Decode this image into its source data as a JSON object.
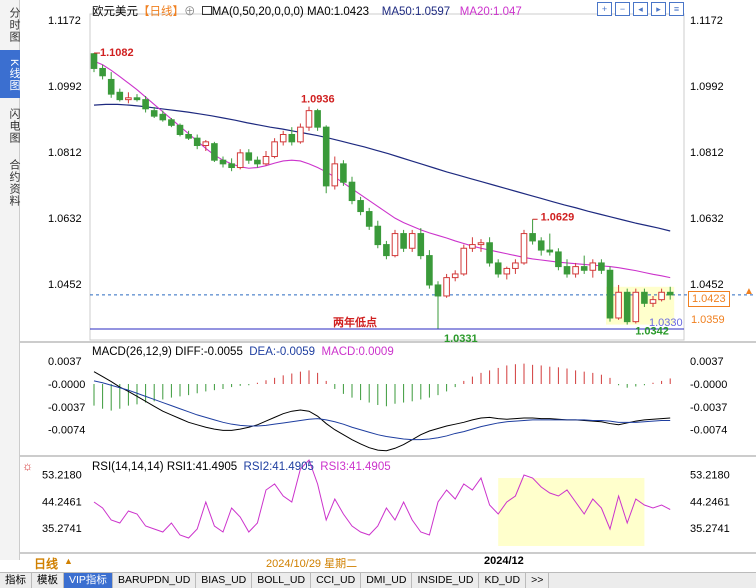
{
  "sidebar": {
    "tabs": [
      {
        "label": "分时图",
        "active": false
      },
      {
        "label": "K线图",
        "active": true
      },
      {
        "label": "闪电图",
        "active": false
      },
      {
        "label": "合约资料",
        "active": false
      }
    ]
  },
  "header": {
    "symbol": "欧元美元",
    "period": "【日线】",
    "plus": "⊕",
    "ma_params": "MA(0,50,20,0,0,0)",
    "ma0": "MA0:1.0423",
    "ma50": "MA50:1.0597",
    "ma20": "MA20:1.047"
  },
  "toolbar": {
    "icons": [
      "zoom-in-icon",
      "zoom-out-icon",
      "left-icon",
      "right-icon",
      "config-icon"
    ]
  },
  "colors": {
    "up": "#d23a3a",
    "down": "#3a9a3a",
    "ma50": "#1e2a80",
    "ma20": "#cc33cc",
    "dif": "#000000",
    "dea": "#1e3ea0",
    "rsi": "#cc33cc",
    "hline": "#2a2ac0",
    "label_red": "#d02020",
    "label_green": "#2a9a2a",
    "orange": "#f08020",
    "highlight": "#ffffcc"
  },
  "annotations": {
    "high1": "1.1082",
    "high2": "1.0936",
    "high3": "1.0629",
    "low_label": "两年低点",
    "low1": "1.0331",
    "low2": "1.0342",
    "hline_label": "1.0330",
    "price_tag": "1.0423",
    "price_tag2": "1.0359"
  },
  "main_axis": {
    "ticks": [
      "1.1172",
      "1.0992",
      "1.0812",
      "1.0632",
      "1.0452"
    ]
  },
  "macd_header": {
    "title": "MACD(26,12,9)",
    "dif": "DIFF:-0.0055",
    "dea": "DEA:-0.0059",
    "macd": "MACD:0.0009"
  },
  "macd_axis": {
    "ticks": [
      "0.0037",
      "-0.0000",
      "-0.0037",
      "-0.0074"
    ]
  },
  "rsi_header": {
    "title": "RSI(14,14,14)",
    "rsi1": "RSI1:41.4905",
    "rsi2": "RSI2:41.4905",
    "rsi3": "RSI3:41.4905"
  },
  "rsi_axis": {
    "ticks": [
      "53.2180",
      "44.2461",
      "35.2741"
    ]
  },
  "date_bar": {
    "period": "日线",
    "arrow": "▲",
    "date1": "2024/10/29 星期二",
    "date2": "2024/12"
  },
  "bottom_tabs": [
    "指标",
    "模板",
    "VIP指标",
    "BARUPDN_UD",
    "BIAS_UD",
    "BOLL_UD",
    "CCI_UD",
    "DMI_UD",
    "INSIDE_UD",
    "KD_UD",
    ">>"
  ],
  "chart_data": {
    "type": "candlestick",
    "title": "欧元美元 日线",
    "ylim": [
      1.03,
      1.1172
    ],
    "candles": [
      [
        1.108,
        1.1082,
        1.103,
        1.104
      ],
      [
        1.104,
        1.105,
        1.101,
        1.102
      ],
      [
        1.101,
        1.103,
        1.096,
        1.097
      ],
      [
        1.0975,
        1.0985,
        1.095,
        1.0955
      ],
      [
        1.0955,
        1.0975,
        1.0945,
        1.096
      ],
      [
        1.096,
        1.097,
        1.095,
        1.0955
      ],
      [
        1.0955,
        1.0965,
        1.092,
        1.093
      ],
      [
        1.0925,
        1.0935,
        1.0905,
        1.091
      ],
      [
        1.0915,
        1.0925,
        1.0895,
        1.09
      ],
      [
        1.09,
        1.0905,
        1.088,
        1.0885
      ],
      [
        1.0885,
        1.089,
        1.0855,
        1.086
      ],
      [
        1.086,
        1.087,
        1.0845,
        1.085
      ],
      [
        1.085,
        1.086,
        1.082,
        1.083
      ],
      [
        1.083,
        1.0845,
        1.0815,
        1.084
      ],
      [
        1.0835,
        1.084,
        1.0785,
        1.079
      ],
      [
        1.079,
        1.08,
        1.077,
        1.078
      ],
      [
        1.078,
        1.0795,
        1.076,
        1.077
      ],
      [
        1.077,
        1.082,
        1.0765,
        1.081
      ],
      [
        1.081,
        1.082,
        1.078,
        1.079
      ],
      [
        1.079,
        1.08,
        1.077,
        1.078
      ],
      [
        1.078,
        1.0815,
        1.0775,
        1.08
      ],
      [
        1.08,
        1.085,
        1.0795,
        1.084
      ],
      [
        1.084,
        1.087,
        1.083,
        1.086
      ],
      [
        1.086,
        1.088,
        1.083,
        1.084
      ],
      [
        1.084,
        1.089,
        1.0835,
        1.088
      ],
      [
        1.088,
        1.0936,
        1.087,
        1.0925
      ],
      [
        1.0925,
        1.093,
        1.087,
        1.088
      ],
      [
        1.088,
        1.0885,
        1.07,
        1.072
      ],
      [
        1.072,
        1.08,
        1.071,
        1.078
      ],
      [
        1.078,
        1.079,
        1.072,
        1.073
      ],
      [
        1.073,
        1.0745,
        1.067,
        1.068
      ],
      [
        1.068,
        1.069,
        1.064,
        1.065
      ],
      [
        1.065,
        1.066,
        1.06,
        1.061
      ],
      [
        1.061,
        1.0625,
        1.055,
        1.056
      ],
      [
        1.056,
        1.057,
        1.052,
        1.053
      ],
      [
        1.053,
        1.06,
        1.0525,
        1.059
      ],
      [
        1.059,
        1.06,
        1.054,
        1.055
      ],
      [
        1.055,
        1.06,
        1.054,
        1.059
      ],
      [
        1.059,
        1.0605,
        1.052,
        1.053
      ],
      [
        1.053,
        1.0545,
        1.044,
        1.045
      ],
      [
        1.045,
        1.046,
        1.0331,
        1.042
      ],
      [
        1.042,
        1.048,
        1.0415,
        1.047
      ],
      [
        1.047,
        1.049,
        1.046,
        1.048
      ],
      [
        1.048,
        1.056,
        1.0475,
        1.055
      ],
      [
        1.055,
        1.058,
        1.054,
        1.056
      ],
      [
        1.056,
        1.0575,
        1.054,
        1.0565
      ],
      [
        1.0565,
        1.058,
        1.05,
        1.051
      ],
      [
        1.051,
        1.052,
        1.047,
        1.048
      ],
      [
        1.048,
        1.05,
        1.0465,
        1.0495
      ],
      [
        1.0495,
        1.052,
        1.048,
        1.051
      ],
      [
        1.051,
        1.06,
        1.0505,
        1.059
      ],
      [
        1.059,
        1.0629,
        1.056,
        1.057
      ],
      [
        1.057,
        1.058,
        1.053,
        1.0545
      ],
      [
        1.0545,
        1.059,
        1.053,
        1.054
      ],
      [
        1.054,
        1.055,
        1.049,
        1.05
      ],
      [
        1.05,
        1.052,
        1.047,
        1.048
      ],
      [
        1.048,
        1.051,
        1.047,
        1.05
      ],
      [
        1.05,
        1.053,
        1.048,
        1.049
      ],
      [
        1.049,
        1.052,
        1.047,
        1.051
      ],
      [
        1.051,
        1.052,
        1.048,
        1.049
      ],
      [
        1.049,
        1.05,
        1.035,
        1.036
      ],
      [
        1.036,
        1.045,
        1.0355,
        1.043
      ],
      [
        1.043,
        1.044,
        1.0342,
        1.035
      ],
      [
        1.035,
        1.044,
        1.0345,
        1.043
      ],
      [
        1.043,
        1.044,
        1.039,
        1.04
      ],
      [
        1.04,
        1.042,
        1.039,
        1.041
      ],
      [
        1.041,
        1.044,
        1.0405,
        1.043
      ],
      [
        1.043,
        1.0445,
        1.041,
        1.0423
      ]
    ],
    "ma50": [
      1.094,
      1.0942,
      1.0942,
      1.094,
      1.0937,
      1.0933,
      1.0929,
      1.0925,
      1.0921,
      1.0916,
      1.0911,
      1.0905,
      1.0899,
      1.0892,
      1.0886,
      1.088,
      1.0875,
      1.0869,
      1.0863,
      1.0857,
      1.085,
      1.0842,
      1.0834,
      1.0826,
      1.0817,
      1.0808,
      1.0798,
      1.0788,
      1.0778,
      1.0768,
      1.0758,
      1.0749,
      1.074,
      1.0731,
      1.0722,
      1.0713,
      1.0704,
      1.0695,
      1.0686,
      1.0677,
      1.0668,
      1.066,
      1.0651,
      1.0643,
      1.0635,
      1.0627,
      1.0619,
      1.0612,
      1.0605,
      1.0597
    ],
    "ma20": [
      1.106,
      1.105,
      1.1035,
      1.1018,
      1.1,
      1.0982,
      1.0962,
      1.0942,
      1.0922,
      1.0902,
      1.0882,
      1.0862,
      1.0842,
      1.0822,
      1.0804,
      1.079,
      1.078,
      1.0772,
      1.0768,
      1.077,
      1.0775,
      1.0782,
      1.0788,
      1.079,
      1.0788,
      1.078,
      1.077,
      1.0758,
      1.0744,
      1.0728,
      1.0712,
      1.0696,
      1.068,
      1.0664,
      1.0648,
      1.0632,
      1.062,
      1.061,
      1.06,
      1.0592,
      1.0585,
      1.0578,
      1.057,
      1.0563,
      1.0556,
      1.055,
      1.0545,
      1.054,
      1.0535,
      1.053,
      1.0525,
      1.0521,
      1.0518,
      1.0515,
      1.0512,
      1.051,
      1.0508,
      1.0506,
      1.0504,
      1.0502,
      1.05,
      1.0497,
      1.0493,
      1.0489,
      1.0484,
      1.0479,
      1.0475,
      1.047
    ],
    "macd_hist": [
      -0.0035,
      -0.004,
      -0.0043,
      -0.004,
      -0.0035,
      -0.0033,
      -0.003,
      -0.0028,
      -0.0025,
      -0.0022,
      -0.002,
      -0.0018,
      -0.0015,
      -0.0012,
      -0.001,
      -0.0008,
      -0.0005,
      -0.0003,
      -0.0002,
      0.0002,
      0.0006,
      0.001,
      0.0014,
      0.0017,
      0.002,
      0.0022,
      0.0018,
      0.0005,
      -0.0008,
      -0.0016,
      -0.0022,
      -0.0026,
      -0.003,
      -0.0034,
      -0.0036,
      -0.0032,
      -0.003,
      -0.0028,
      -0.0025,
      -0.0022,
      -0.0018,
      -0.0012,
      -0.0005,
      0.0005,
      0.0012,
      0.0018,
      0.0022,
      0.0026,
      0.003,
      0.0032,
      0.0033,
      0.0031,
      0.003,
      0.0028,
      0.0027,
      0.0025,
      0.0022,
      0.002,
      0.0018,
      0.0015,
      0.001,
      -0.0002,
      -0.0006,
      -0.0004,
      -0.0002,
      0.0002,
      0.0005,
      0.0009
    ],
    "dif": [
      0.002,
      0.0012,
      0.0004,
      -0.0005,
      -0.0012,
      -0.002,
      -0.0028,
      -0.0036,
      -0.0044,
      -0.005,
      -0.0056,
      -0.0062,
      -0.0066,
      -0.007,
      -0.0073,
      -0.0075,
      -0.0075,
      -0.0073,
      -0.007,
      -0.0066,
      -0.006,
      -0.0054,
      -0.0048,
      -0.0044,
      -0.0042,
      -0.0044,
      -0.0052,
      -0.0064,
      -0.0074,
      -0.0082,
      -0.009,
      -0.0097,
      -0.0103,
      -0.0107,
      -0.0108,
      -0.0104,
      -0.0098,
      -0.009,
      -0.0082,
      -0.0076,
      -0.0072,
      -0.0068,
      -0.0065,
      -0.0062,
      -0.0058,
      -0.0055,
      -0.0054,
      -0.0056,
      -0.0057,
      -0.0056,
      -0.0055,
      -0.0055,
      -0.0056,
      -0.0056,
      -0.0057,
      -0.0058,
      -0.0058,
      -0.0059,
      -0.006,
      -0.0061,
      -0.0064,
      -0.0066,
      -0.0063,
      -0.006,
      -0.0058,
      -0.0057,
      -0.0056,
      -0.0055
    ],
    "dea": [
      0.0005,
      0.0002,
      -0.0002,
      -0.0006,
      -0.001,
      -0.0015,
      -0.002,
      -0.0025,
      -0.003,
      -0.0035,
      -0.004,
      -0.0045,
      -0.005,
      -0.0054,
      -0.0058,
      -0.0062,
      -0.0065,
      -0.0067,
      -0.0068,
      -0.0068,
      -0.0067,
      -0.0065,
      -0.0063,
      -0.0061,
      -0.0059,
      -0.0057,
      -0.0056,
      -0.0058,
      -0.0061,
      -0.0065,
      -0.007,
      -0.0074,
      -0.0078,
      -0.0082,
      -0.0085,
      -0.0087,
      -0.0089,
      -0.009,
      -0.009,
      -0.0089,
      -0.0087,
      -0.0084,
      -0.008,
      -0.0077,
      -0.0073,
      -0.0069,
      -0.0066,
      -0.0063,
      -0.0061,
      -0.006,
      -0.0059,
      -0.0058,
      -0.0058,
      -0.0058,
      -0.0058,
      -0.0058,
      -0.0058,
      -0.0058,
      -0.0059,
      -0.0059,
      -0.006,
      -0.0062,
      -0.0062,
      -0.0062,
      -0.0061,
      -0.006,
      -0.0059,
      -0.0059
    ],
    "rsi": [
      44,
      42,
      38,
      37,
      41,
      40,
      36,
      35,
      34,
      37,
      33,
      32,
      35,
      44,
      36,
      34,
      42,
      39,
      34,
      37,
      48,
      50,
      46,
      44,
      55,
      58,
      50,
      38,
      45,
      40,
      36,
      34,
      33,
      36,
      42,
      38,
      44,
      38,
      34,
      33,
      44,
      48,
      45,
      50,
      48,
      52,
      43,
      40,
      44,
      46,
      53,
      52,
      49,
      47,
      46,
      48,
      44,
      40,
      45,
      42,
      35,
      46,
      37,
      45,
      43,
      42,
      43,
      41.5
    ]
  }
}
